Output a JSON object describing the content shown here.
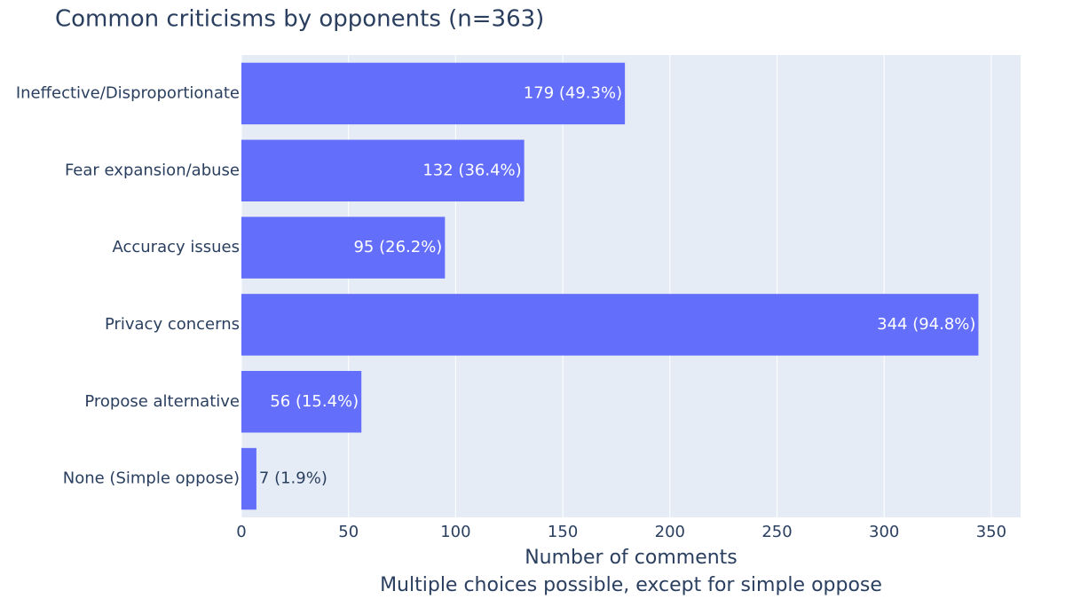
{
  "chart_data": {
    "type": "hbar",
    "title": "Common criticisms by opponents (n=363)",
    "categories": [
      "Ineffective/Disproportionate",
      "Fear expansion/abuse",
      "Accuracy issues",
      "Privacy concerns",
      "Propose alternative",
      "None (Simple oppose)"
    ],
    "values": [
      179,
      132,
      95,
      344,
      56,
      7
    ],
    "value_labels": [
      "179 (49.3%)",
      "132 (36.4%)",
      "95 (26.2%)",
      "344 (94.8%)",
      "56 (15.4%)",
      "7 (1.9%)"
    ],
    "color": "#636efa",
    "xlabel": "Number of comments",
    "xlabel_note": "Multiple choices possible, except for simple oppose",
    "xlim": [
      0,
      363.7
    ],
    "xticks": [
      0,
      50,
      100,
      150,
      200,
      250,
      300,
      350
    ],
    "grid": true
  }
}
